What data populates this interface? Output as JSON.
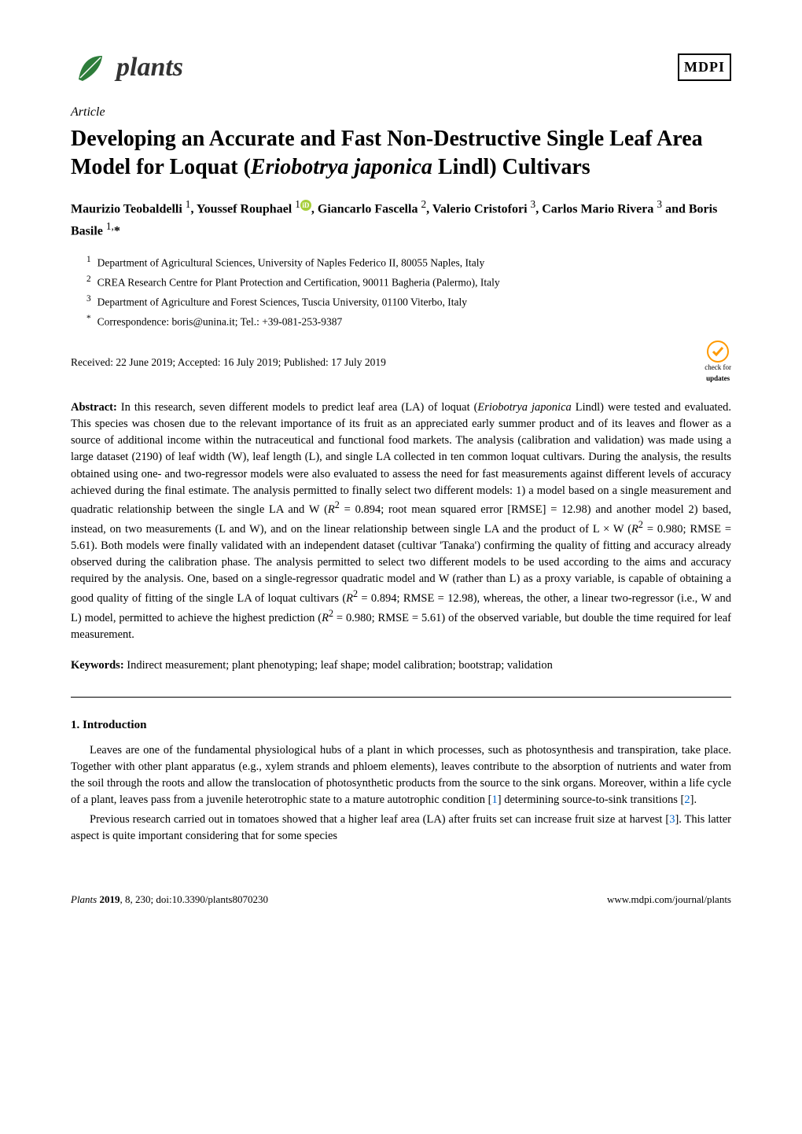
{
  "header": {
    "journal_name": "plants",
    "publisher": "MDPI"
  },
  "article_type": "Article",
  "title_part1": "Developing an Accurate and Fast Non-Destructive Single Leaf Area Model for Loquat (",
  "title_species": "Eriobotrya japonica",
  "title_part2": " Lindl) Cultivars",
  "authors_html": "Maurizio Teobaldelli <sup>1</sup>, Youssef Rouphael <sup>1</sup><span class=\"orcid-icon\">iD</span>, Giancarlo Fascella <sup>2</sup>, Valerio Cristofori <sup>3</sup>, Carlos Mario Rivera <sup>3</sup> and Boris Basile <sup>1,</sup>*",
  "affiliations": [
    {
      "num": "1",
      "text": "Department of Agricultural Sciences, University of Naples Federico II, 80055 Naples, Italy"
    },
    {
      "num": "2",
      "text": "CREA Research Centre for Plant Protection and Certification, 90011 Bagheria (Palermo), Italy"
    },
    {
      "num": "3",
      "text": "Department of Agriculture and Forest Sciences, Tuscia University, 01100 Viterbo, Italy"
    },
    {
      "num": "*",
      "text": "Correspondence: boris@unina.it; Tel.: +39-081-253-9387"
    }
  ],
  "dates": "Received: 22 June 2019; Accepted: 16 July 2019; Published: 17 July 2019",
  "check_updates_label1": "check for",
  "check_updates_label2": "updates",
  "abstract_label": "Abstract:",
  "abstract_text": " In this research, seven different models to predict leaf area (LA) of loquat (Eriobotrya japonica Lindl) were tested and evaluated. This species was chosen due to the relevant importance of its fruit as an appreciated early summer product and of its leaves and flower as a source of additional income within the nutraceutical and functional food markets. The analysis (calibration and validation) was made using a large dataset (2190) of leaf width (W), leaf length (L), and single LA collected in ten common loquat cultivars. During the analysis, the results obtained using one- and two-regressor models were also evaluated to assess the need for fast measurements against different levels of accuracy achieved during the final estimate. The analysis permitted to finally select two different models: 1) a model based on a single measurement and quadratic relationship between the single LA and W (R² = 0.894; root mean squared error [RMSE] = 12.98) and another model 2) based, instead, on two measurements (L and W), and on the linear relationship between single LA and the product of L × W (R² = 0.980; RMSE = 5.61). Both models were finally validated with an independent dataset (cultivar 'Tanaka') confirming the quality of fitting and accuracy already observed during the calibration phase. The analysis permitted to select two different models to be used according to the aims and accuracy required by the analysis. One, based on a single-regressor quadratic model and W (rather than L) as a proxy variable, is capable of obtaining a good quality of fitting of the single LA of loquat cultivars (R² = 0.894; RMSE = 12.98), whereas, the other, a linear two-regressor (i.e., W and L) model, permitted to achieve the highest prediction (R² = 0.980; RMSE = 5.61) of the observed variable, but double the time required for leaf measurement.",
  "keywords_label": "Keywords:",
  "keywords_text": " Indirect measurement; plant phenotyping; leaf shape; model calibration; bootstrap; validation",
  "section1_heading": "1. Introduction",
  "para1": "Leaves are one of the fundamental physiological hubs of a plant in which processes, such as photosynthesis and transpiration, take place. Together with other plant apparatus (e.g., xylem strands and phloem elements), leaves contribute to the absorption of nutrients and water from the soil through the roots and allow the translocation of photosynthetic products from the source to the sink organs. Moreover, within a life cycle of a plant, leaves pass from a juvenile heterotrophic state to a mature autotrophic condition [1] determining source-to-sink transitions [2].",
  "para2": "Previous research carried out in tomatoes showed that a higher leaf area (LA) after fruits set can increase fruit size at harvest [3]. This latter aspect is quite important considering that for some species",
  "footer": {
    "left_journal": "Plants",
    "left_year": " 2019",
    "left_rest": ", 8, 230; doi:10.3390/plants8070230",
    "right": "www.mdpi.com/journal/plants"
  }
}
